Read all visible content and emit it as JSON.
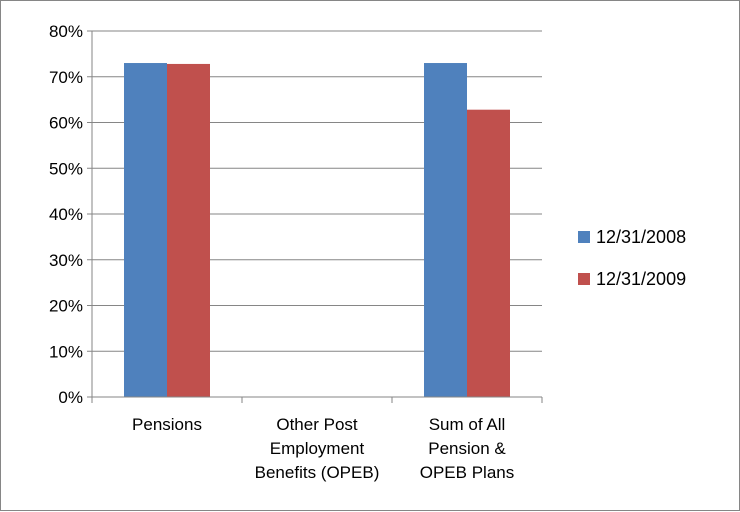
{
  "chart_data": {
    "type": "bar",
    "title": "",
    "xlabel": "",
    "ylabel": "",
    "categories": [
      [
        "Pensions"
      ],
      [
        "Other Post",
        "Employment",
        "Benefits (OPEB)"
      ],
      [
        "Sum of All",
        "Pension &",
        "OPEB Plans"
      ]
    ],
    "series": [
      {
        "name": "12/31/2008",
        "color": "#4F81BD",
        "values": [
          0.73,
          0,
          0.73
        ]
      },
      {
        "name": "12/31/2009",
        "color": "#C0504D",
        "values": [
          0.728,
          0,
          0.628
        ]
      }
    ],
    "ylim": [
      0,
      0.8
    ],
    "yticks": [
      0,
      0.1,
      0.2,
      0.3,
      0.4,
      0.5,
      0.6,
      0.7,
      0.8
    ],
    "ytick_labels": [
      "0%",
      "10%",
      "20%",
      "30%",
      "40%",
      "50%",
      "60%",
      "70%",
      "80%"
    ],
    "grid": true,
    "legend_position": "right"
  }
}
